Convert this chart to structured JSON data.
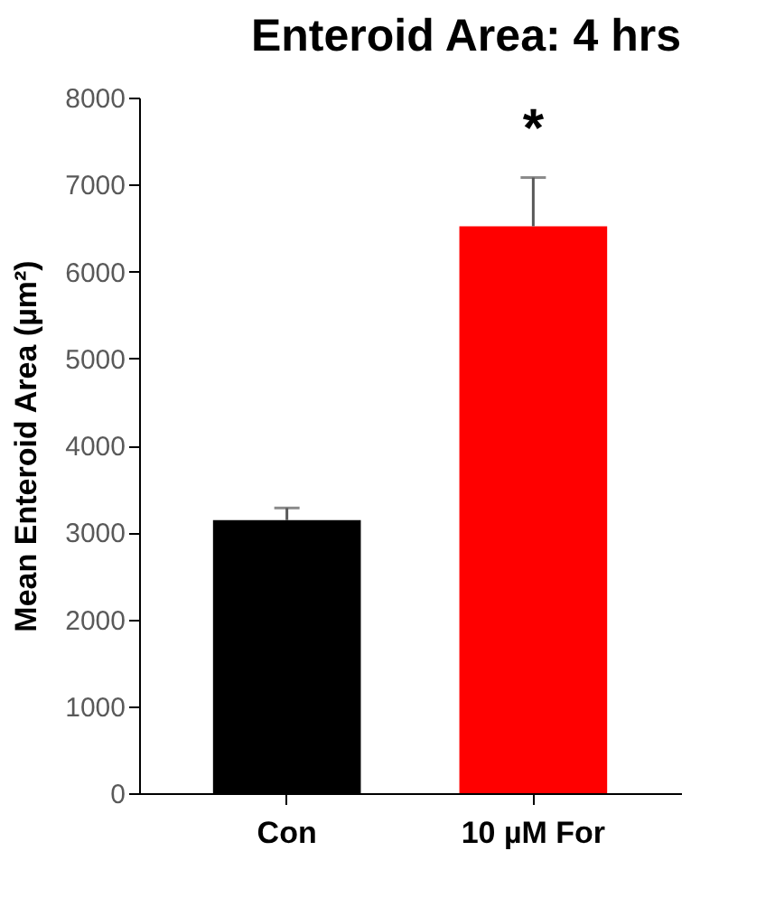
{
  "chart_data": {
    "type": "bar",
    "title": "Enteroid Area: 4 hrs",
    "ylabel": "Mean Enteroid Area (µm²)",
    "categories": [
      "Con",
      "10 µM For"
    ],
    "values": [
      3140,
      6520
    ],
    "colors": [
      "#000000",
      "#ff0000"
    ],
    "errors": [
      [
        3140,
        3280
      ],
      [
        6520,
        7080
      ]
    ],
    "ylim": [
      0,
      8000
    ],
    "yticks": [
      0,
      1000,
      2000,
      3000,
      4000,
      5000,
      6000,
      7000,
      8000
    ],
    "grid": false,
    "legend": false,
    "annotations": [
      "*"
    ]
  }
}
